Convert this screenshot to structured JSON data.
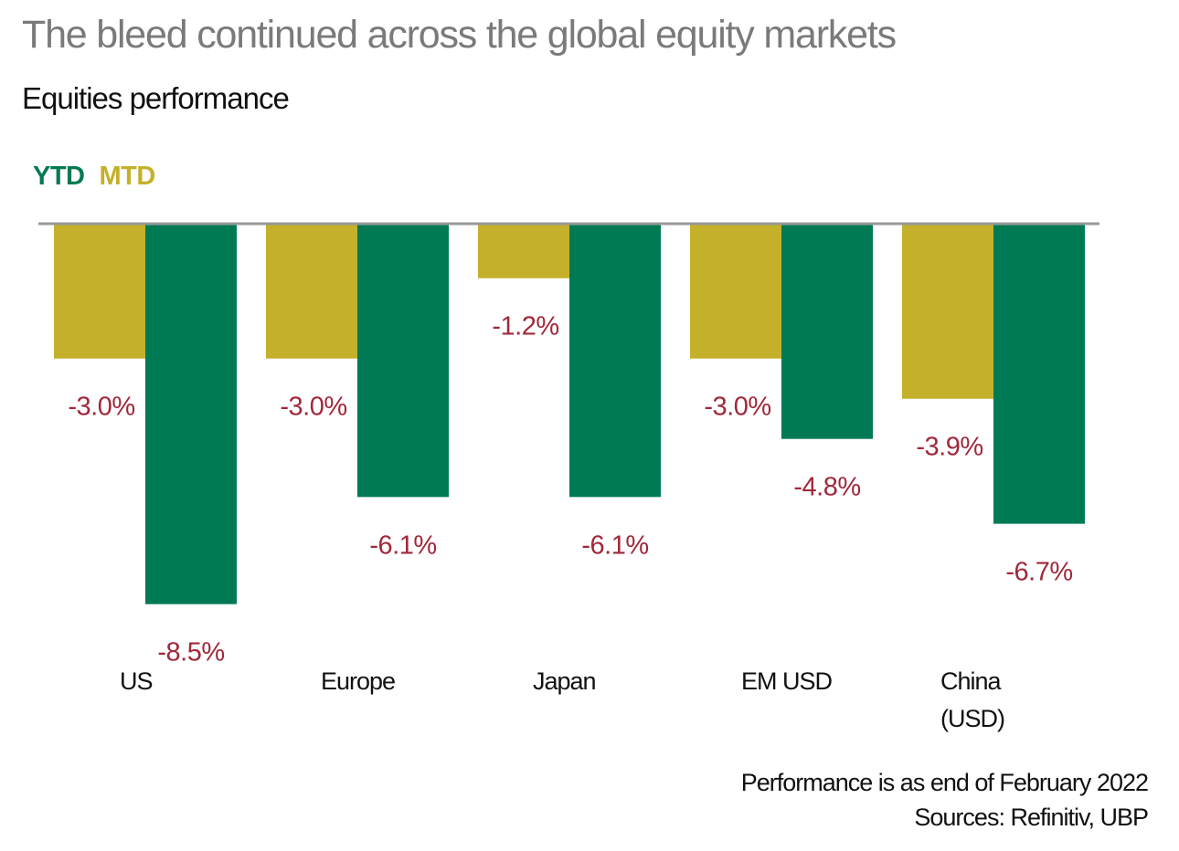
{
  "header": {
    "title": "The bleed continued across the global equity markets",
    "subtitle": "Equities performance"
  },
  "legend": [
    {
      "label": "YTD",
      "color": "#007a55"
    },
    {
      "label": "MTD",
      "color": "#c4b02a"
    }
  ],
  "footer": {
    "note": "Performance is as end of February 2022",
    "sources": "Sources: Refinitiv, UBP"
  },
  "colors": {
    "mtd": "#c4b02a",
    "ytd": "#007a55",
    "label": "#a0283a",
    "axis": "#999999",
    "category": "#111111"
  },
  "chart_data": {
    "type": "bar",
    "title": "The bleed continued across the global equity markets",
    "subtitle": "Equities performance",
    "categories": [
      [
        "US"
      ],
      [
        "Europe"
      ],
      [
        "Japan"
      ],
      [
        "EM USD"
      ],
      [
        "China",
        "(USD)"
      ]
    ],
    "series": [
      {
        "name": "MTD",
        "values": [
          -3.0,
          -3.0,
          -1.2,
          -3.0,
          -3.9
        ],
        "labels": [
          "-3.0%",
          "-3.0%",
          "-1.2%",
          "-3.0%",
          "-3.9%"
        ]
      },
      {
        "name": "YTD",
        "values": [
          -8.5,
          -6.1,
          -6.1,
          -4.8,
          -6.7
        ],
        "labels": [
          "-8.5%",
          "-6.1%",
          "-6.1%",
          "-4.8%",
          "-6.7%"
        ]
      }
    ],
    "xlabel": "",
    "ylabel": "",
    "ylim": [
      -8.5,
      0
    ],
    "grid": false,
    "legend_position": "top-left",
    "unit": "%"
  }
}
